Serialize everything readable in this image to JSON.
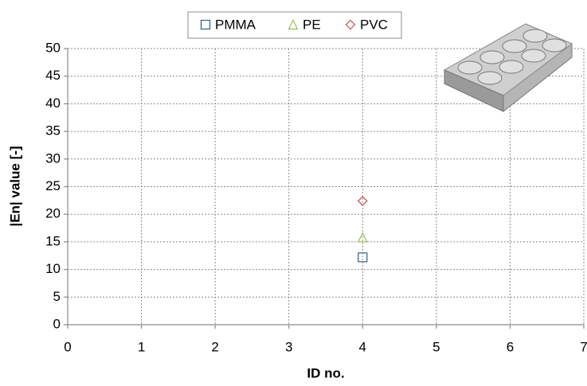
{
  "chart_data": {
    "type": "scatter",
    "xlabel": "ID no.",
    "ylabel": "|En| value [-]",
    "series": [
      {
        "name": "PMMA",
        "color": "#2f5e91",
        "marker": "square",
        "x": [
          4
        ],
        "values": [
          12.2
        ]
      },
      {
        "name": "PE",
        "color": "#9bbb59",
        "marker": "triangle",
        "x": [
          4
        ],
        "values": [
          15.8
        ]
      },
      {
        "name": "PVC",
        "color": "#c0504d",
        "marker": "diamond",
        "x": [
          4
        ],
        "values": [
          22.4
        ]
      }
    ],
    "xlim": [
      0,
      7
    ],
    "xticks": [
      0,
      1,
      2,
      3,
      4,
      5,
      6,
      7
    ],
    "ylim": [
      0,
      50
    ],
    "yticks": [
      0,
      5,
      10,
      15,
      20,
      25,
      30,
      35,
      40,
      45,
      50
    ],
    "grid": true,
    "legend": "top"
  }
}
